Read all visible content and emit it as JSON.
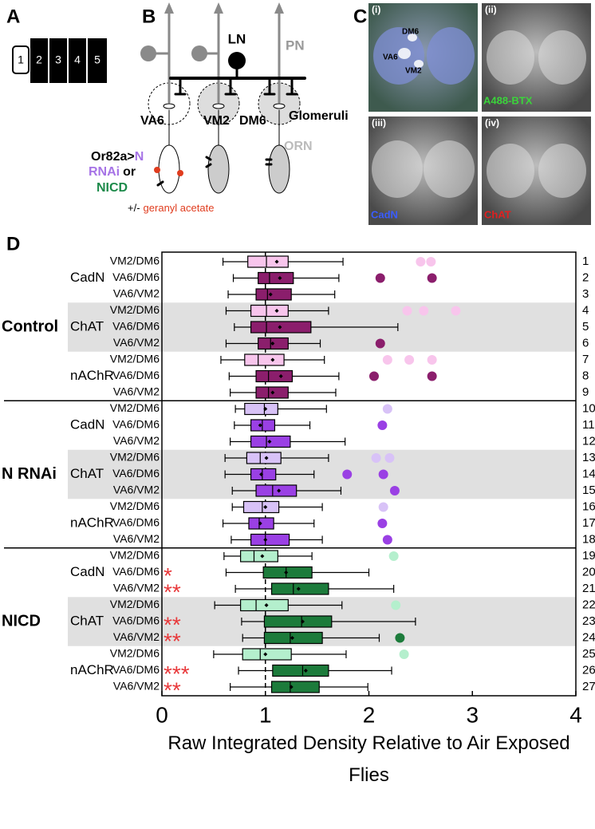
{
  "panel_a": {
    "label": "A",
    "boxes": [
      "1",
      "2",
      "3",
      "4",
      "5"
    ]
  },
  "panel_b": {
    "label": "B",
    "ln": "LN",
    "pn": "PN",
    "va6": "VA6",
    "vm2": "VM2",
    "dm6": "DM6",
    "glomeruli": "Glomeruli",
    "orn": "ORN",
    "genotype": "Or82a>",
    "n": "N",
    "rnai": "RNAi",
    "or": "or",
    "nicd": "NICD",
    "plus_minus": "+/-",
    "odor": "geranyl acetate"
  },
  "panel_c": {
    "label": "C",
    "images": [
      {
        "tag": "(i)",
        "caption": null
      },
      {
        "tag": "(ii)",
        "caption": "A488-BTX"
      },
      {
        "tag": "(iii)",
        "caption": "CadN"
      },
      {
        "tag": "(iv)",
        "caption": "ChAT"
      }
    ],
    "glomeruli": [
      "DM6",
      "VA6",
      "VM2"
    ]
  },
  "chart_data": {
    "type": "box",
    "panel_label": "D",
    "xlabel": "Raw Integrated Density Relative to Air Exposed Flies",
    "xlim": [
      0,
      4
    ],
    "xticks": [
      0,
      1,
      2,
      3,
      4
    ],
    "reference_line": 1,
    "groups": [
      {
        "name": "Control",
        "stains": [
          {
            "name": "CadN",
            "shaded": false,
            "rows": [
              {
                "number": 1,
                "label": "VM2/DM6",
                "color": "#f8c5ec",
                "whisker_low": 0.59,
                "q1": 0.83,
                "median": 1.01,
                "q3": 1.22,
                "whisker_high": 1.75,
                "mean": 1.11,
                "outliers": [
                  2.5,
                  2.6
                ]
              },
              {
                "number": 2,
                "label": "VA6/DM6",
                "color": "#8b1e6c",
                "whisker_low": 0.69,
                "q1": 0.93,
                "median": 1.04,
                "q3": 1.27,
                "whisker_high": 1.71,
                "mean": 1.14,
                "outliers": [
                  2.11,
                  2.61
                ]
              },
              {
                "number": 3,
                "label": "VA6/VM2",
                "color": "#8b1e6c",
                "whisker_low": 0.64,
                "q1": 0.91,
                "median": 1.02,
                "q3": 1.25,
                "whisker_high": 1.67,
                "mean": 1.05,
                "outliers": []
              }
            ]
          },
          {
            "name": "ChAT",
            "shaded": true,
            "rows": [
              {
                "number": 4,
                "label": "VM2/DM6",
                "color": "#f8c5ec",
                "whisker_low": 0.62,
                "q1": 0.86,
                "median": 1.01,
                "q3": 1.22,
                "whisker_high": 1.61,
                "mean": 1.11,
                "outliers": [
                  2.37,
                  2.53,
                  2.84
                ]
              },
              {
                "number": 5,
                "label": "VA6/DM6",
                "color": "#8b1e6c",
                "whisker_low": 0.7,
                "q1": 0.86,
                "median": 1.01,
                "q3": 1.44,
                "whisker_high": 2.28,
                "mean": 1.14,
                "outliers": []
              },
              {
                "number": 6,
                "label": "VA6/VM2",
                "color": "#8b1e6c",
                "whisker_low": 0.62,
                "q1": 0.93,
                "median": 1.05,
                "q3": 1.22,
                "whisker_high": 1.53,
                "mean": 1.07,
                "outliers": [
                  2.11
                ]
              }
            ]
          },
          {
            "name": "nAChR",
            "shaded": false,
            "rows": [
              {
                "number": 7,
                "label": "VM2/DM6",
                "color": "#f8c5ec",
                "whisker_low": 0.57,
                "q1": 0.8,
                "median": 0.93,
                "q3": 1.18,
                "whisker_high": 1.57,
                "mean": 1.07,
                "outliers": [
                  2.18,
                  2.39,
                  2.61
                ]
              },
              {
                "number": 8,
                "label": "VA6/DM6",
                "color": "#8b1e6c",
                "whisker_low": 0.65,
                "q1": 0.91,
                "median": 1.03,
                "q3": 1.26,
                "whisker_high": 1.71,
                "mean": 1.15,
                "outliers": [
                  2.05,
                  2.61
                ]
              },
              {
                "number": 9,
                "label": "VA6/VM2",
                "color": "#8b1e6c",
                "whisker_low": 0.66,
                "q1": 0.91,
                "median": 1.03,
                "q3": 1.22,
                "whisker_high": 1.68,
                "mean": 1.07,
                "outliers": []
              }
            ]
          }
        ]
      },
      {
        "name": "N RNAi",
        "stains": [
          {
            "name": "CadN",
            "shaded": false,
            "rows": [
              {
                "number": 10,
                "label": "VM2/DM6",
                "color": "#d8c2f7",
                "whisker_low": 0.71,
                "q1": 0.8,
                "median": 0.99,
                "q3": 1.12,
                "whisker_high": 1.59,
                "mean": 1.0,
                "outliers": [
                  2.18
                ]
              },
              {
                "number": 11,
                "label": "VA6/DM6",
                "color": "#9a40e4",
                "whisker_low": 0.7,
                "q1": 0.86,
                "median": 0.97,
                "q3": 1.09,
                "whisker_high": 1.43,
                "mean": 0.95,
                "outliers": [
                  2.13
                ]
              },
              {
                "number": 12,
                "label": "VA6/VM2",
                "color": "#9a40e4",
                "whisker_low": 0.66,
                "q1": 0.86,
                "median": 1.01,
                "q3": 1.24,
                "whisker_high": 1.77,
                "mean": 1.04,
                "outliers": []
              }
            ]
          },
          {
            "name": "ChAT",
            "shaded": true,
            "rows": [
              {
                "number": 13,
                "label": "VM2/DM6",
                "color": "#d8c2f7",
                "whisker_low": 0.61,
                "q1": 0.82,
                "median": 0.95,
                "q3": 1.15,
                "whisker_high": 1.61,
                "mean": 1.01,
                "outliers": [
                  2.07,
                  2.2
                ]
              },
              {
                "number": 14,
                "label": "VA6/DM6",
                "color": "#9a40e4",
                "whisker_low": 0.61,
                "q1": 0.86,
                "median": 0.97,
                "q3": 1.1,
                "whisker_high": 1.47,
                "mean": 0.96,
                "outliers": [
                  1.79,
                  2.14
                ]
              },
              {
                "number": 15,
                "label": "VA6/VM2",
                "color": "#9a40e4",
                "whisker_low": 0.68,
                "q1": 0.91,
                "median": 1.07,
                "q3": 1.3,
                "whisker_high": 1.73,
                "mean": 1.13,
                "outliers": [
                  2.25
                ]
              }
            ]
          },
          {
            "name": "nAChR",
            "shaded": false,
            "rows": [
              {
                "number": 16,
                "label": "VM2/DM6",
                "color": "#d8c2f7",
                "whisker_low": 0.68,
                "q1": 0.79,
                "median": 0.97,
                "q3": 1.13,
                "whisker_high": 1.55,
                "mean": 1.0,
                "outliers": [
                  2.14
                ]
              },
              {
                "number": 17,
                "label": "VA6/DM6",
                "color": "#9a40e4",
                "whisker_low": 0.59,
                "q1": 0.84,
                "median": 0.94,
                "q3": 1.08,
                "whisker_high": 1.47,
                "mean": 0.95,
                "outliers": [
                  2.13
                ]
              },
              {
                "number": 18,
                "label": "VA6/VM2",
                "color": "#9a40e4",
                "whisker_low": 0.67,
                "q1": 0.86,
                "median": 1.0,
                "q3": 1.23,
                "whisker_high": 1.55,
                "mean": 1.0,
                "outliers": [
                  2.18
                ]
              }
            ]
          }
        ]
      },
      {
        "name": "NICD",
        "stains": [
          {
            "name": "CadN",
            "shaded": false,
            "rows": [
              {
                "number": 19,
                "label": "VM2/DM6",
                "color": "#b4efcd",
                "whisker_low": 0.6,
                "q1": 0.76,
                "median": 0.89,
                "q3": 1.12,
                "whisker_high": 1.45,
                "mean": 0.97,
                "outliers": [
                  2.24
                ]
              },
              {
                "number": 20,
                "label": "VA6/DM6",
                "color": "#1c7b3b",
                "whisker_low": 0.62,
                "q1": 0.98,
                "median": 1.2,
                "q3": 1.45,
                "whisker_high": 2.0,
                "mean": 1.2,
                "outliers": [],
                "stars": "*"
              },
              {
                "number": 21,
                "label": "VA6/VM2",
                "color": "#1c7b3b",
                "whisker_low": 0.71,
                "q1": 1.06,
                "median": 1.27,
                "q3": 1.61,
                "whisker_high": 2.24,
                "mean": 1.32,
                "outliers": [],
                "stars": "**"
              }
            ]
          },
          {
            "name": "ChAT",
            "shaded": true,
            "rows": [
              {
                "number": 22,
                "label": "VM2/DM6",
                "color": "#b4efcd",
                "whisker_low": 0.51,
                "q1": 0.76,
                "median": 0.91,
                "q3": 1.22,
                "whisker_high": 1.74,
                "mean": 1.01,
                "outliers": [
                  2.26
                ]
              },
              {
                "number": 23,
                "label": "VA6/DM6",
                "color": "#1c7b3b",
                "whisker_low": 0.77,
                "q1": 0.99,
                "median": 1.35,
                "q3": 1.64,
                "whisker_high": 2.45,
                "mean": 1.36,
                "outliers": [],
                "stars": "**"
              },
              {
                "number": 24,
                "label": "VA6/VM2",
                "color": "#1c7b3b",
                "whisker_low": 0.78,
                "q1": 0.99,
                "median": 1.24,
                "q3": 1.55,
                "whisker_high": 2.1,
                "mean": 1.26,
                "outliers": [
                  2.3
                ],
                "stars": "**"
              }
            ]
          },
          {
            "name": "nAChR",
            "shaded": false,
            "rows": [
              {
                "number": 25,
                "label": "VM2/DM6",
                "color": "#b4efcd",
                "whisker_low": 0.5,
                "q1": 0.78,
                "median": 0.95,
                "q3": 1.25,
                "whisker_high": 1.78,
                "mean": 1.0,
                "outliers": [
                  2.34
                ]
              },
              {
                "number": 26,
                "label": "VA6/DM6",
                "color": "#1c7b3b",
                "whisker_low": 0.74,
                "q1": 1.07,
                "median": 1.36,
                "q3": 1.61,
                "whisker_high": 2.22,
                "mean": 1.39,
                "outliers": [],
                "stars": "***"
              },
              {
                "number": 27,
                "label": "VA6/VM2",
                "color": "#1c7b3b",
                "whisker_low": 0.66,
                "q1": 1.06,
                "median": 1.24,
                "q3": 1.52,
                "whisker_high": 1.99,
                "mean": 1.25,
                "outliers": [],
                "stars": "**"
              }
            ]
          }
        ]
      }
    ]
  }
}
